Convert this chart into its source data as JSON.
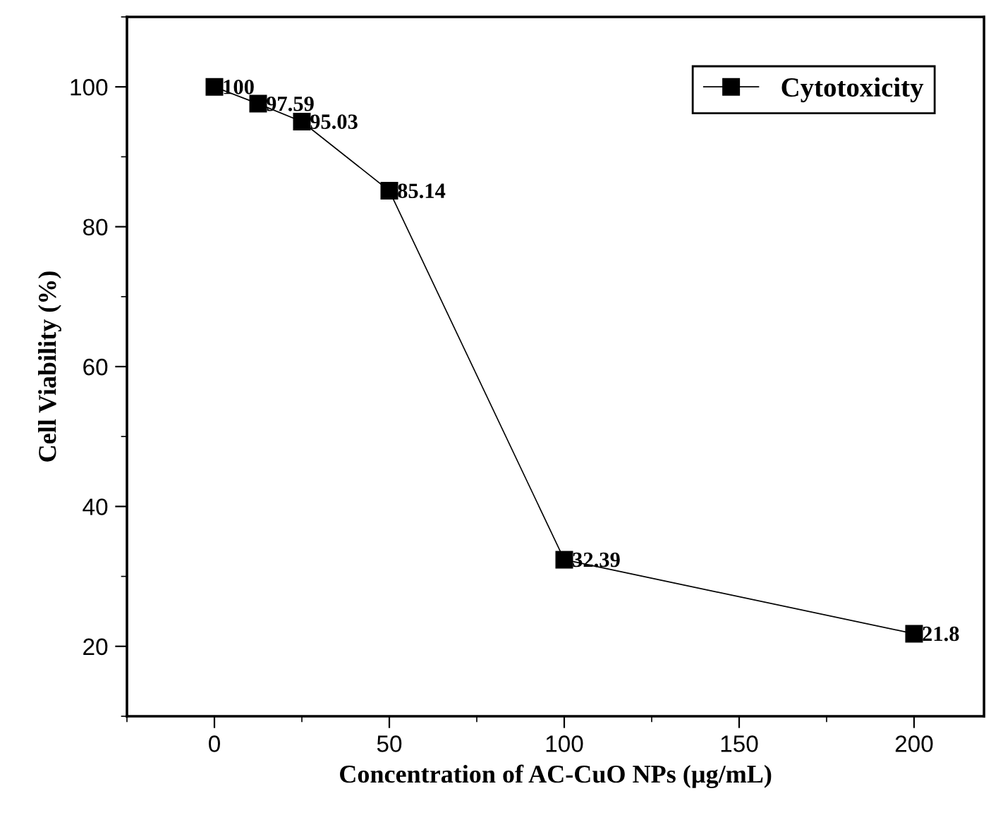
{
  "chart_data": {
    "type": "line",
    "xlabel": "Concentration of AC-CuO NPs (µg/mL)",
    "ylabel": "Cell Viability (%)",
    "x": [
      0,
      12.5,
      25,
      50,
      100,
      200
    ],
    "series": [
      {
        "name": "Cytotoxicity",
        "color": "#000000",
        "values": [
          100,
          97.59,
          95.03,
          85.14,
          32.39,
          21.8
        ]
      }
    ],
    "data_labels": true,
    "marker": "square",
    "line_style": "solid",
    "legend": "top right",
    "grid": false,
    "xlim": [
      -25,
      220
    ],
    "xticks": [
      0,
      50,
      100,
      150,
      200
    ],
    "ylim": [
      10,
      110
    ],
    "yticks": [
      20,
      40,
      60,
      80,
      100
    ]
  }
}
